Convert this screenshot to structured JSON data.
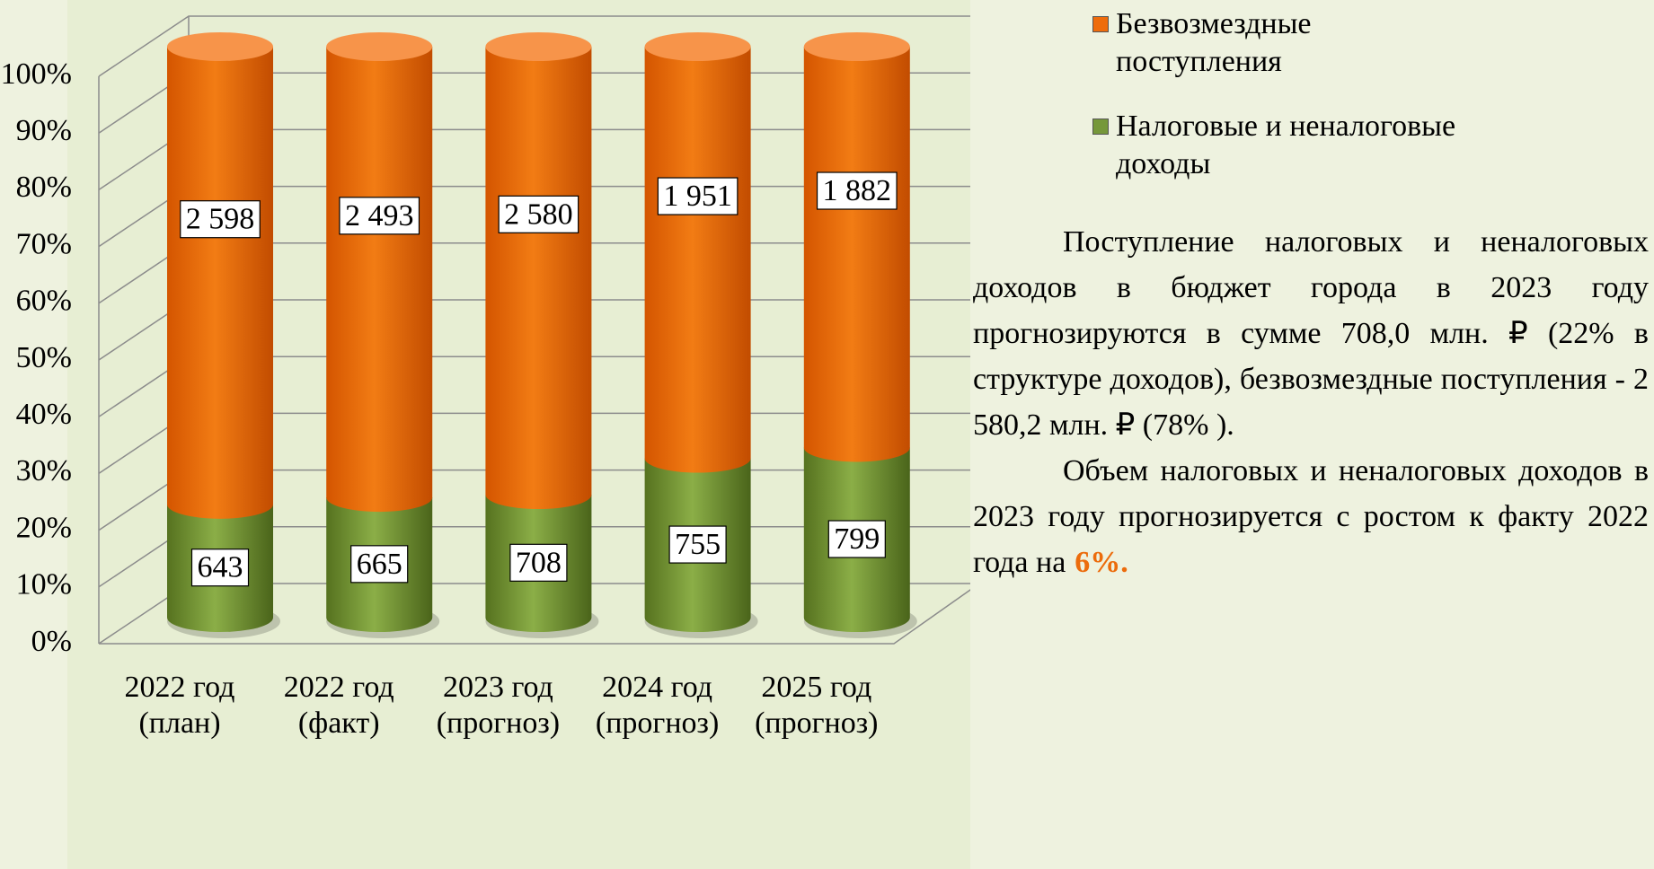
{
  "chart_data": {
    "type": "bar",
    "stacked": "percent",
    "categories": [
      [
        "2022 год",
        "(план)"
      ],
      [
        "2022 год",
        "(факт)"
      ],
      [
        "2023 год",
        "(прогноз)"
      ],
      [
        "2024 год",
        "(прогноз)"
      ],
      [
        "2025 год",
        "(прогноз)"
      ]
    ],
    "series": [
      {
        "name": "Налоговые и неналоговые доходы",
        "color": "#76983a",
        "values": [
          643,
          665,
          708,
          755,
          799
        ],
        "value_labels": [
          "643",
          "665",
          "708",
          "755",
          "799"
        ]
      },
      {
        "name": "Безвозмездные поступления",
        "color": "#ee6c0c",
        "values": [
          2598,
          2493,
          2580,
          1951,
          1882
        ],
        "value_labels": [
          "2 598",
          "2 493",
          "2 580",
          "1 951",
          "1 882"
        ]
      }
    ],
    "ylim": [
      0,
      100
    ],
    "yticks": [
      {
        "value": 0,
        "label": "0%"
      },
      {
        "value": 10,
        "label": "10%"
      },
      {
        "value": 20,
        "label": "20%"
      },
      {
        "value": 30,
        "label": "30%"
      },
      {
        "value": 40,
        "label": "40%"
      },
      {
        "value": 50,
        "label": "50%"
      },
      {
        "value": 60,
        "label": "60%"
      },
      {
        "value": 70,
        "label": "70%"
      },
      {
        "value": 80,
        "label": "80%"
      },
      {
        "value": 90,
        "label": "90%"
      },
      {
        "value": 100,
        "label": "100%"
      }
    ],
    "grid": true,
    "legend": "top-right"
  },
  "text": {
    "paragraph1": "Поступление налоговых и неналоговых доходов в бюджет города в 2023 году прогнозируются в сумме 708,0 млн. ₽ (22% в структуре доходов), безвозмездные поступления - 2 580,2 млн. ₽ (78% ).",
    "paragraph2": "Объем налоговых и неналоговых доходов в 2023 году прогнозируется с ростом к факту 2022 года на",
    "highlight": "6%."
  }
}
